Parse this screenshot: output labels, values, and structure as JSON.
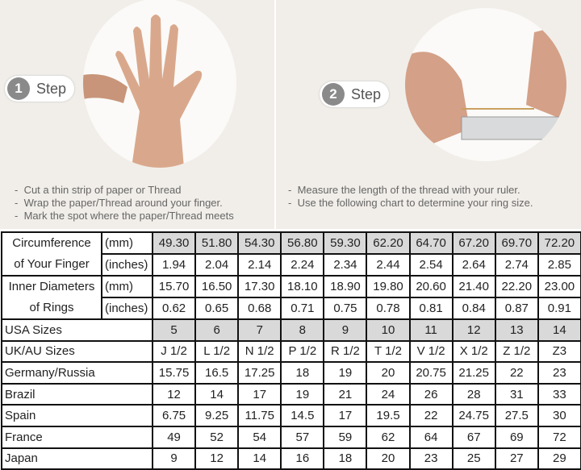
{
  "step1": {
    "number": "1",
    "label": "Step",
    "instructions": [
      "Cut a thin strip of paper or Thread",
      "Wrap the paper/Thread around your finger.",
      "Mark the spot where the paper/Thread meets"
    ]
  },
  "step2": {
    "number": "2",
    "label": "Step",
    "instructions": [
      "Measure the length of the thread with your ruler.",
      "Use the following chart to determine your ring size."
    ]
  },
  "table": {
    "circumference": {
      "label1": "Circumference",
      "label2": "of Your Finger",
      "unit_mm": "(mm)",
      "unit_in": "(inches)",
      "mm": [
        "49.30",
        "51.80",
        "54.30",
        "56.80",
        "59.30",
        "62.20",
        "64.70",
        "67.20",
        "69.70",
        "72.20"
      ],
      "inches": [
        "1.94",
        "2.04",
        "2.14",
        "2.24",
        "2.34",
        "2.44",
        "2.54",
        "2.64",
        "2.74",
        "2.85"
      ]
    },
    "inner": {
      "label1": "Inner Diameters",
      "label2": "of Rings",
      "unit_mm": "(mm)",
      "unit_in": "(inches)",
      "mm": [
        "15.70",
        "16.50",
        "17.30",
        "18.10",
        "18.90",
        "19.80",
        "20.60",
        "21.40",
        "22.20",
        "23.00"
      ],
      "inches": [
        "0.62",
        "0.65",
        "0.68",
        "0.71",
        "0.75",
        "0.78",
        "0.81",
        "0.84",
        "0.87",
        "0.91"
      ]
    },
    "rows": [
      {
        "label": "USA Sizes",
        "values": [
          "5",
          "6",
          "7",
          "8",
          "9",
          "10",
          "11",
          "12",
          "13",
          "14"
        ]
      },
      {
        "label": "UK/AU Sizes",
        "values": [
          "J 1/2",
          "L 1/2",
          "N 1/2",
          "P 1/2",
          "R 1/2",
          "T 1/2",
          "V 1/2",
          "X 1/2",
          "Z 1/2",
          "Z3"
        ]
      },
      {
        "label": "Germany/Russia",
        "values": [
          "15.75",
          "16.5",
          "17.25",
          "18",
          "19",
          "20",
          "20.75",
          "21.25",
          "22",
          "23"
        ]
      },
      {
        "label": "Brazil",
        "values": [
          "12",
          "14",
          "17",
          "19",
          "21",
          "24",
          "26",
          "28",
          "31",
          "33"
        ]
      },
      {
        "label": "Spain",
        "values": [
          "6.75",
          "9.25",
          "11.75",
          "14.5",
          "17",
          "19.5",
          "22",
          "24.75",
          "27.5",
          "30"
        ]
      },
      {
        "label": "France",
        "values": [
          "49",
          "52",
          "54",
          "57",
          "59",
          "62",
          "64",
          "67",
          "69",
          "72"
        ]
      },
      {
        "label": "Japan",
        "values": [
          "9",
          "12",
          "14",
          "16",
          "18",
          "20",
          "23",
          "25",
          "27",
          "29"
        ]
      }
    ]
  },
  "colors": {
    "highlight": "#d9d9d9",
    "panel": "#f1eee9"
  }
}
